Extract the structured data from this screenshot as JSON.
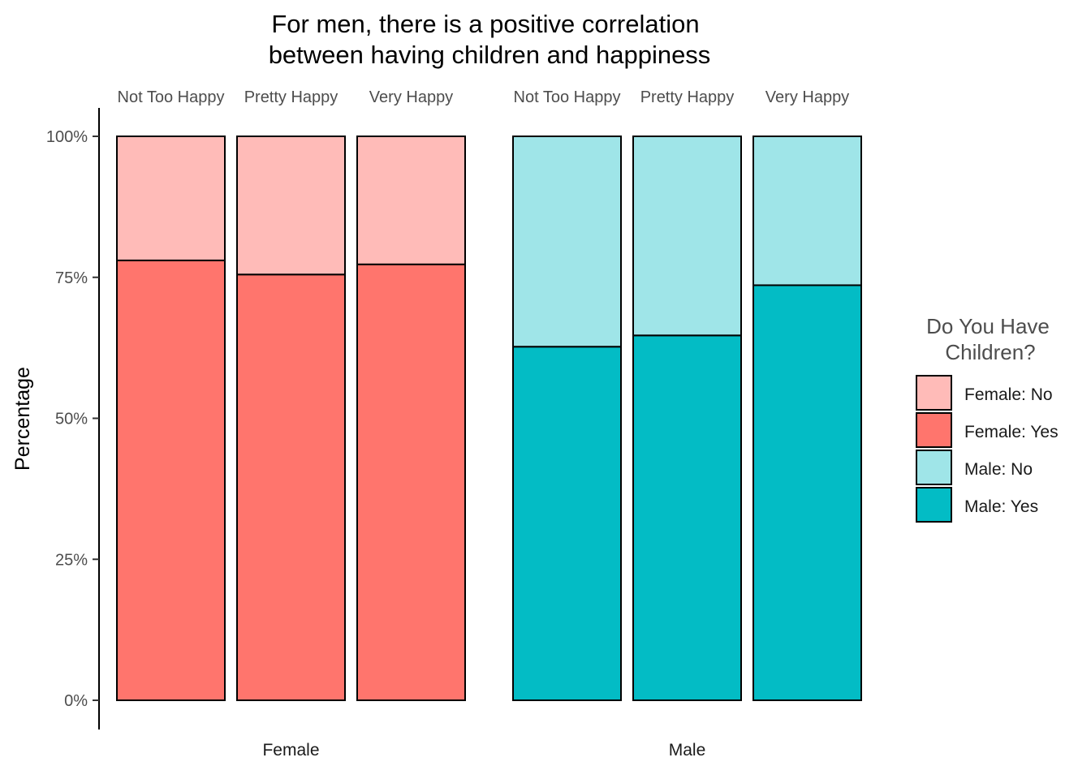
{
  "chart_data": {
    "type": "bar",
    "stacked": true,
    "percent_scale": true,
    "title_lines": [
      "For men, there is a positive correlation",
      "between having children and happiness"
    ],
    "ylabel": "Percentage",
    "ylim": [
      0,
      100
    ],
    "y_ticks": [
      0,
      25,
      50,
      75,
      100
    ],
    "y_tick_labels": [
      "0%",
      "25%",
      "50%",
      "75%",
      "100%"
    ],
    "grid": false,
    "legend": {
      "title_lines": [
        "Do You Have",
        "Children?"
      ],
      "position": "right",
      "entries": [
        {
          "label": "Female: No",
          "color": "#FFBBB8"
        },
        {
          "label": "Female: Yes",
          "color": "#FF756D"
        },
        {
          "label": "Male: No",
          "color": "#9FE5E8"
        },
        {
          "label": "Male: Yes",
          "color": "#03BCC5"
        }
      ]
    },
    "groups": [
      {
        "name": "Female",
        "categories": [
          "Not Too Happy",
          "Pretty Happy",
          "Very Happy"
        ],
        "series": [
          {
            "key": "Female: Yes",
            "values": [
              78.0,
              75.5,
              77.3
            ]
          },
          {
            "key": "Female: No",
            "values": [
              22.0,
              24.5,
              22.7
            ]
          }
        ]
      },
      {
        "name": "Male",
        "categories": [
          "Not Too Happy",
          "Pretty Happy",
          "Very Happy"
        ],
        "series": [
          {
            "key": "Male: Yes",
            "values": [
              62.7,
              64.7,
              73.6
            ]
          },
          {
            "key": "Male: No",
            "values": [
              37.3,
              35.3,
              26.4
            ]
          }
        ]
      }
    ]
  }
}
